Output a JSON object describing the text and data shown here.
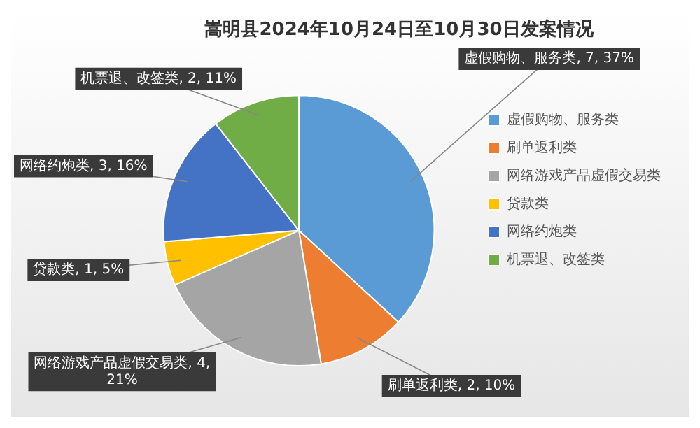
{
  "chart_data": {
    "type": "pie",
    "title": "嵩明县2024年10月24日至10月30日发案情况",
    "categories": [
      "虚假购物、服务类",
      "刷单返利类",
      "网络游戏产品虚假交易类",
      "贷款类",
      "网络约炮类",
      "机票退、改签类"
    ],
    "values": [
      7,
      2,
      4,
      1,
      3,
      2
    ],
    "value_labels": [
      "虚假购物、服务类, 7, 37%",
      "刷单返利类, 2, 10%",
      "网络游戏产品虚假交易类, 4, 21%",
      "贷款类, 1, 5%",
      "网络约炮类, 3, 16%",
      "机票退、改签类, 2, 11%"
    ],
    "colors": [
      "#5b9bd5",
      "#ed7d31",
      "#a5a5a5",
      "#ffc000",
      "#4472c4",
      "#70ad47"
    ],
    "legend": "right"
  }
}
